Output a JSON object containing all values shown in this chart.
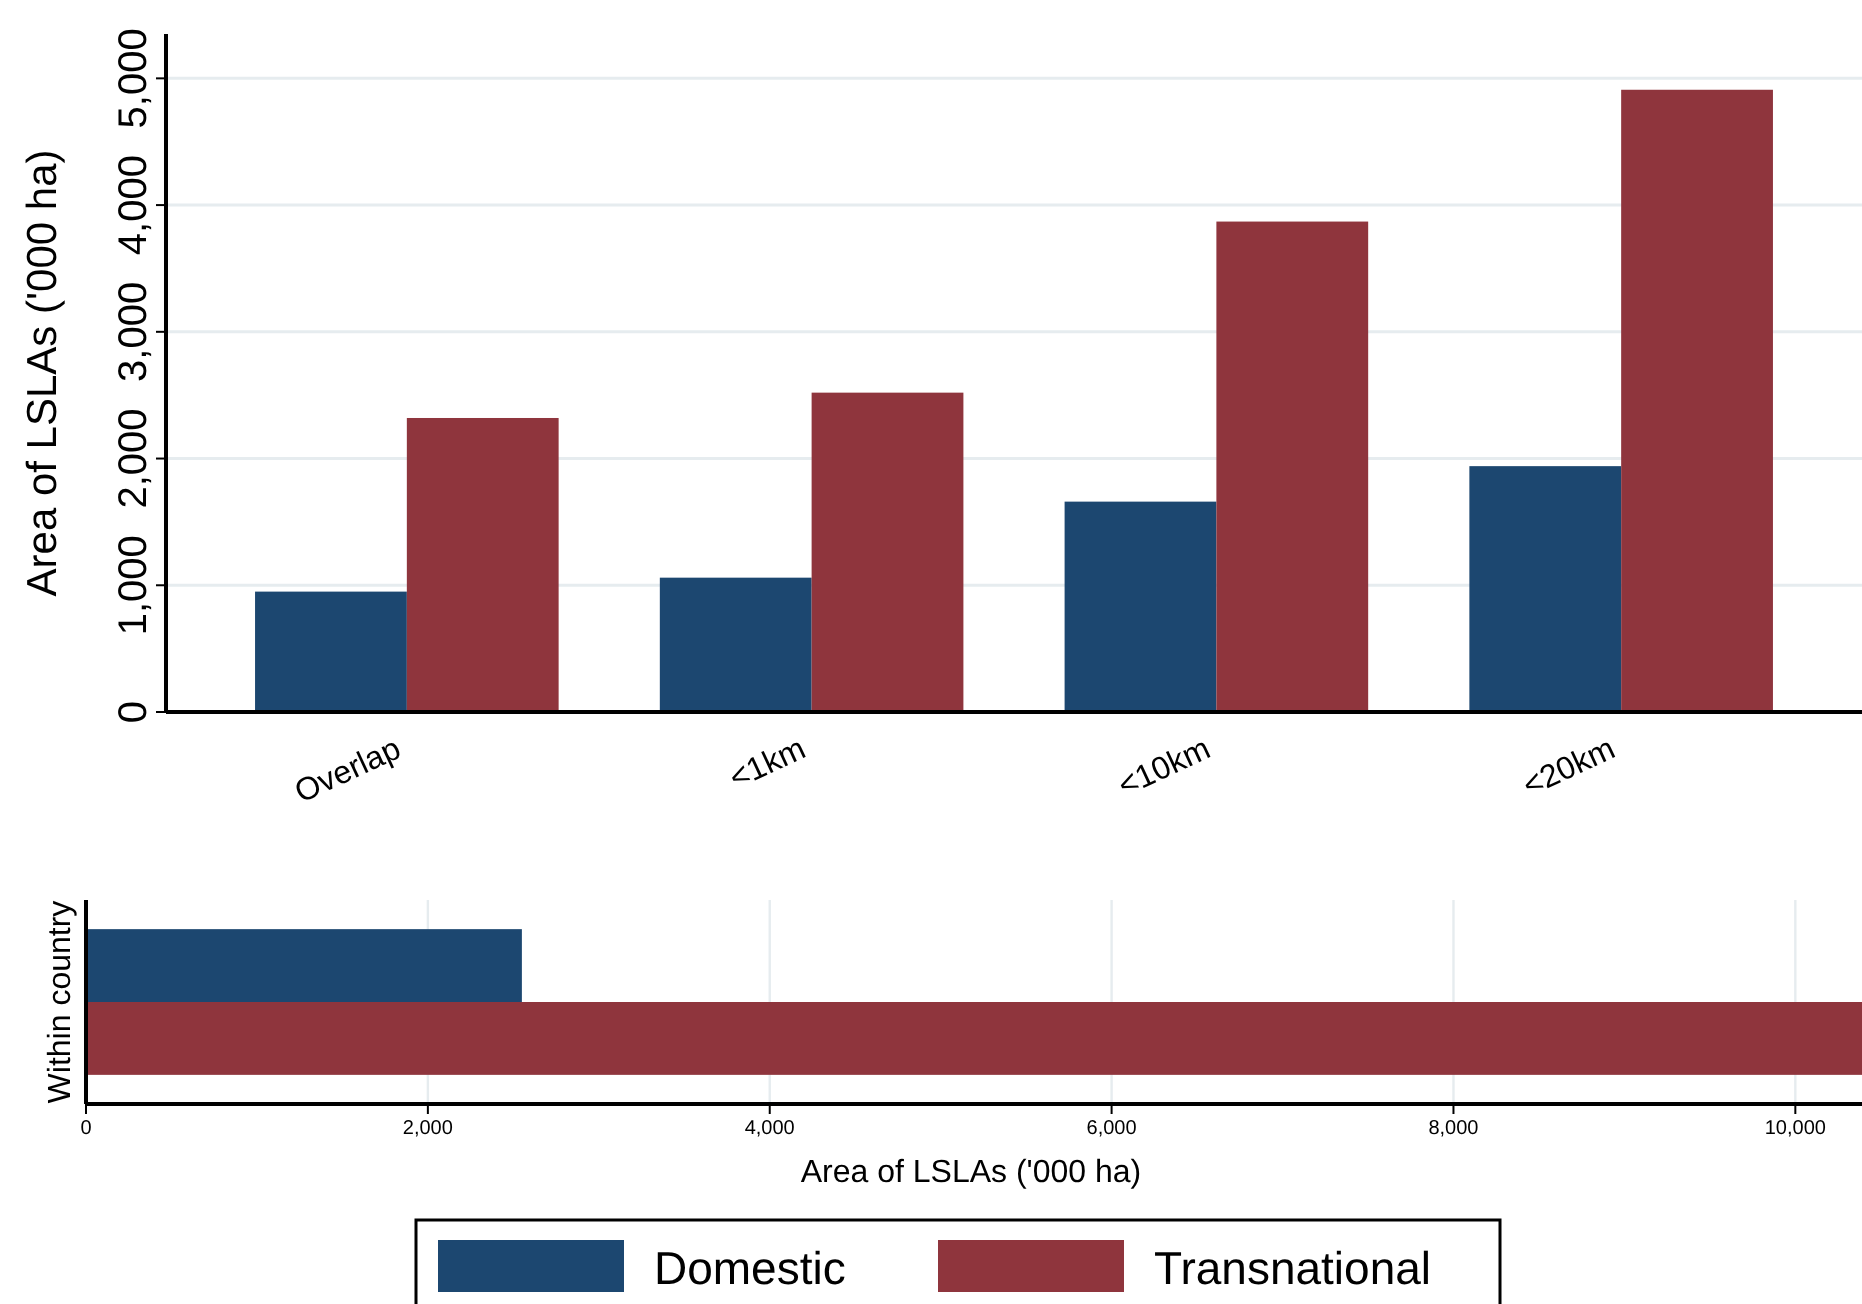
{
  "chart_data": [
    {
      "type": "bar",
      "ylabel": "Area of LSLAs ('000 ha)",
      "categories": [
        "Overlap",
        "<1km",
        "<10km",
        "<20km"
      ],
      "series": [
        {
          "color": "#1c4770",
          "values": [
            950,
            1060,
            1660,
            1940
          ]
        },
        {
          "color": "#8f353d",
          "values": [
            2320,
            2520,
            3870,
            4910
          ]
        }
      ],
      "ylim": [
        0,
        5350
      ],
      "yticks": [
        {
          "value": 0,
          "label": "0"
        },
        {
          "value": 1000,
          "label": "1,000"
        },
        {
          "value": 2000,
          "label": "2,000"
        },
        {
          "value": 3000,
          "label": "3,000"
        },
        {
          "value": 4000,
          "label": "4,000"
        },
        {
          "value": 5000,
          "label": "5,000"
        }
      ],
      "grid": "y"
    },
    {
      "type": "bar",
      "orientation": "horizontal",
      "xlabel": "Area of LSLAs ('000 ha)",
      "categories": [
        "Within country"
      ],
      "series": [
        {
          "name": "Domestic",
          "color": "#1c4770",
          "values": [
            2550
          ]
        },
        {
          "name": "Transnational",
          "color": "#8f353d",
          "values": [
            10390
          ]
        }
      ],
      "xlim": [
        0,
        10390
      ],
      "xticks": [
        {
          "value": 0,
          "label": "0"
        },
        {
          "value": 2000,
          "label": "2,000"
        },
        {
          "value": 4000,
          "label": "4,000"
        },
        {
          "value": 6000,
          "label": "6,000"
        },
        {
          "value": 8000,
          "label": "8,000"
        },
        {
          "value": 10000,
          "label": "10,000"
        }
      ],
      "grid": "x",
      "legend": "bottom"
    }
  ]
}
